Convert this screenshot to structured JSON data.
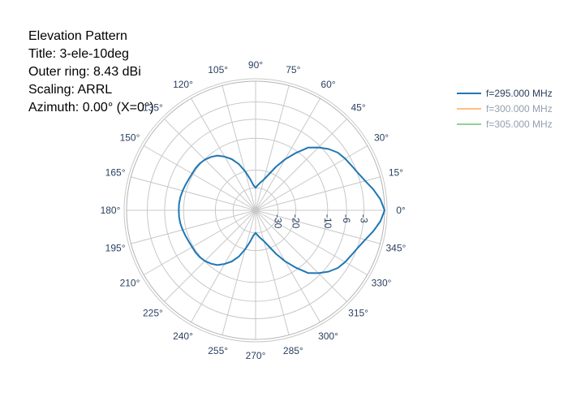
{
  "info": {
    "heading": "Elevation Pattern",
    "title_line": "Title: 3-ele-10deg",
    "outer_ring": "Outer ring: 8.43 dBi",
    "scaling": "Scaling: ARRL",
    "azimuth": "Azimuth: 0.00° (X=0°)"
  },
  "chart_data": {
    "type": "polar-line",
    "radial_axis": {
      "tick_labels": [
        "-30",
        "-20",
        "-10",
        "-6",
        "-3",
        "0"
      ],
      "tick_values_db": [
        -30,
        -20,
        -10,
        -6,
        -3,
        0
      ],
      "scaling": "ARRL",
      "angle_deg": 0
    },
    "angular_axis": {
      "tick_labels": [
        "0°",
        "15°",
        "30°",
        "45°",
        "60°",
        "75°",
        "90°",
        "105°",
        "120°",
        "135°",
        "150°",
        "165°",
        "180°",
        "195°",
        "210°",
        "225°",
        "240°",
        "255°",
        "270°",
        "285°",
        "300°",
        "315°",
        "330°",
        "345°"
      ],
      "tick_angles_deg": [
        0,
        15,
        30,
        45,
        60,
        75,
        90,
        105,
        120,
        135,
        150,
        165,
        180,
        195,
        210,
        225,
        240,
        255,
        270,
        285,
        300,
        315,
        330,
        345
      ]
    },
    "grid": true,
    "legend_position": "top-right",
    "series": [
      {
        "name": "f=295.000 MHz",
        "color": "#1f77b4",
        "visible": true,
        "theta_deg": [
          0,
          5,
          10,
          15,
          20,
          25,
          30,
          35,
          40,
          45,
          50,
          55,
          60,
          65,
          70,
          75,
          80,
          85,
          90,
          95,
          100,
          105,
          110,
          115,
          120,
          125,
          130,
          135,
          140,
          145,
          150,
          155,
          160,
          165,
          170,
          175,
          180,
          185,
          190,
          195,
          200,
          205,
          210,
          215,
          220,
          225,
          230,
          235,
          240,
          245,
          250,
          255,
          260,
          265,
          270,
          275,
          280,
          285,
          290,
          295,
          300,
          305,
          310,
          315,
          320,
          325,
          330,
          335,
          340,
          345,
          350,
          355
        ],
        "gain_db": [
          0,
          -0.5,
          -1.3,
          -2.2,
          -2.9,
          -3.4,
          -3.8,
          -4.3,
          -5.2,
          -6.4,
          -7.8,
          -10.5,
          -13.5,
          -17,
          -21,
          -24,
          -26,
          -28,
          -30,
          -28,
          -24,
          -20,
          -16.5,
          -14.2,
          -12.6,
          -11.3,
          -10.6,
          -10.1,
          -9.8,
          -9.7,
          -9.7,
          -9.6,
          -9.4,
          -9.2,
          -9.0,
          -8.9,
          -8.9,
          -8.9,
          -9.0,
          -9.2,
          -9.4,
          -9.6,
          -9.7,
          -9.7,
          -9.8,
          -10.1,
          -10.6,
          -11.3,
          -12.6,
          -14.2,
          -16.5,
          -20,
          -24,
          -28,
          -30,
          -28,
          -26,
          -24,
          -21,
          -17,
          -13.5,
          -10.5,
          -7.8,
          -6.4,
          -5.2,
          -4.3,
          -3.8,
          -3.4,
          -2.9,
          -2.2,
          -1.3,
          -0.5
        ]
      },
      {
        "name": "f=300.000 MHz",
        "color": "#ff7f0e",
        "visible": false
      },
      {
        "name": "f=305.000 MHz",
        "color": "#2ca02c",
        "visible": false
      }
    ]
  },
  "colors": {
    "tick_text": "#2a3f5f",
    "grid": "#c8c8c8",
    "outer_ring": "#b4b4b4",
    "legend_hidden_text": "#9aa3ae"
  }
}
